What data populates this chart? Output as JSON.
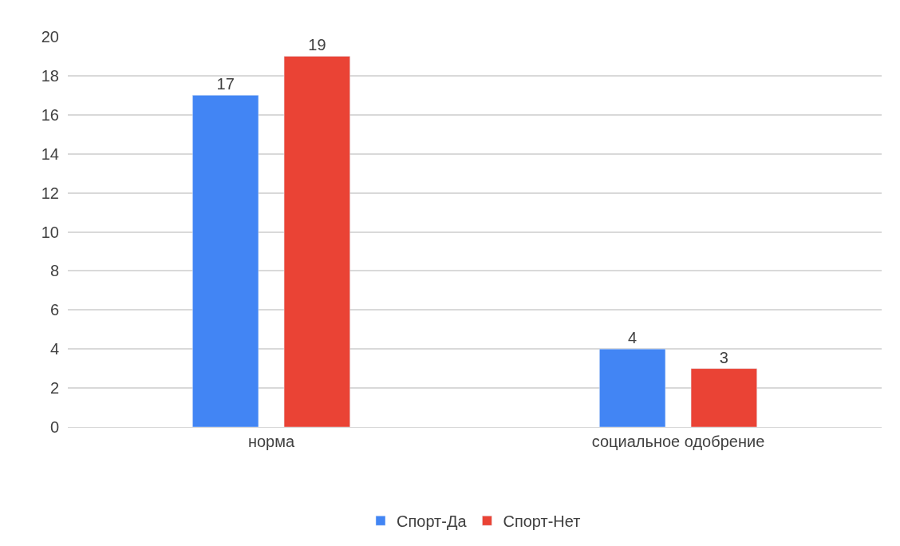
{
  "chart_data": {
    "type": "bar",
    "categories": [
      "норма",
      "социальное одобрение"
    ],
    "series": [
      {
        "name": "Спорт-Да",
        "color": "#4285f4",
        "values": [
          17,
          4
        ]
      },
      {
        "name": "Спорт-Нет",
        "color": "#ea4335",
        "values": [
          19,
          3
        ]
      }
    ],
    "ylim": [
      0,
      20
    ],
    "yticks": [
      0,
      2,
      4,
      6,
      8,
      10,
      12,
      14,
      16,
      18,
      20
    ],
    "grid": "y",
    "legend": "bottom",
    "data_labels": true
  }
}
